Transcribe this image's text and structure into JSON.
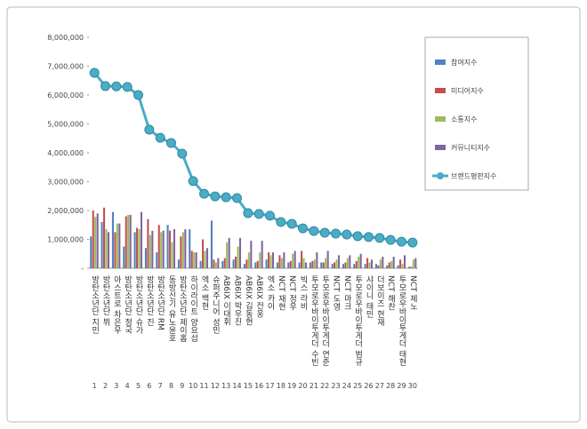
{
  "chart_data": {
    "type": "bar",
    "categories": [
      "방탄소년단 지민",
      "방탄소년단 뷔",
      "아스트로 차은우",
      "방탄소년단 정국",
      "방탄소년단 슈가",
      "방탄소년단 진",
      "방탄소년단 RM",
      "동방신기 유노윤호",
      "방탄소년단 제이홉",
      "하이라이트 양요섭",
      "엑소 백현",
      "슈퍼주니어 성민",
      "AB6IX 이대휘",
      "AB6IX 박우진",
      "AB6IX 김동현",
      "AB6IX 전웅",
      "엑소 카이",
      "NCT 재현",
      "NCT 정우",
      "빅스 라비",
      "투모로우바이투게더 수빈",
      "투모로우바이투게더 연준",
      "NCT 도영",
      "NCT 마크",
      "투모로우바이투게더 범규",
      "샤이니 태민",
      "더보이즈 현재",
      "NCT 해찬",
      "투모로우바이투게더 태현",
      "NCT 제노"
    ],
    "ranks": [
      1,
      2,
      3,
      4,
      5,
      6,
      7,
      8,
      9,
      10,
      11,
      12,
      13,
      14,
      15,
      16,
      17,
      18,
      19,
      20,
      21,
      22,
      23,
      24,
      25,
      26,
      27,
      28,
      29,
      30
    ],
    "series": [
      {
        "name": "참여지수",
        "type": "bar",
        "color": "#4f81bd",
        "values": [
          1100000,
          1600000,
          1950000,
          750000,
          1250000,
          700000,
          550000,
          1500000,
          300000,
          1350000,
          250000,
          1650000,
          250000,
          300000,
          150000,
          200000,
          300000,
          200000,
          200000,
          200000,
          200000,
          200000,
          150000,
          150000,
          150000,
          150000,
          150000,
          100000,
          100000,
          50000
        ]
      },
      {
        "name": "미디어지수",
        "type": "bar",
        "color": "#c0504d",
        "values": [
          2000000,
          2100000,
          1250000,
          1800000,
          1400000,
          1700000,
          1500000,
          1300000,
          1100000,
          600000,
          1000000,
          300000,
          350000,
          400000,
          300000,
          250000,
          550000,
          450000,
          250000,
          600000,
          250000,
          200000,
          200000,
          200000,
          250000,
          350000,
          100000,
          200000,
          300000,
          50000
        ]
      },
      {
        "name": "소통지수",
        "type": "bar",
        "color": "#9bbb59",
        "values": [
          1780000,
          1350000,
          1550000,
          1850000,
          1350000,
          1150000,
          1250000,
          900000,
          1250000,
          550000,
          600000,
          200000,
          900000,
          750000,
          550000,
          550000,
          450000,
          350000,
          500000,
          350000,
          300000,
          350000,
          300000,
          350000,
          400000,
          200000,
          300000,
          250000,
          150000,
          300000
        ]
      },
      {
        "name": "커뮤니티지수",
        "type": "bar",
        "color": "#8064a2",
        "values": [
          1900000,
          1250000,
          1550000,
          1850000,
          1950000,
          1300000,
          1300000,
          1350000,
          1350000,
          550000,
          700000,
          350000,
          1050000,
          1050000,
          950000,
          950000,
          550000,
          550000,
          600000,
          200000,
          550000,
          600000,
          450000,
          450000,
          500000,
          300000,
          400000,
          400000,
          450000,
          350000
        ]
      },
      {
        "name": "브랜드평판지수",
        "type": "line",
        "color": "#4bacc6",
        "values": [
          6770000,
          6310000,
          6300000,
          6280000,
          6000000,
          4800000,
          4520000,
          4340000,
          3970000,
          3020000,
          2580000,
          2490000,
          2460000,
          2430000,
          1910000,
          1880000,
          1820000,
          1600000,
          1540000,
          1380000,
          1290000,
          1230000,
          1200000,
          1170000,
          1110000,
          1080000,
          1050000,
          980000,
          920000,
          890000
        ]
      }
    ],
    "ylim": [
      0,
      8000000
    ],
    "yticks": [
      {
        "value": 0,
        "label": "-"
      },
      {
        "value": 1000000,
        "label": "1,000,000"
      },
      {
        "value": 2000000,
        "label": "2,000,000"
      },
      {
        "value": 3000000,
        "label": "3,000,000"
      },
      {
        "value": 4000000,
        "label": "4,000,000"
      },
      {
        "value": 5000000,
        "label": "5,000,000"
      },
      {
        "value": 6000000,
        "label": "6,000,000"
      },
      {
        "value": 7000000,
        "label": "7,000,000"
      },
      {
        "value": 8000000,
        "label": "8,000,000"
      }
    ],
    "legend": "right"
  }
}
